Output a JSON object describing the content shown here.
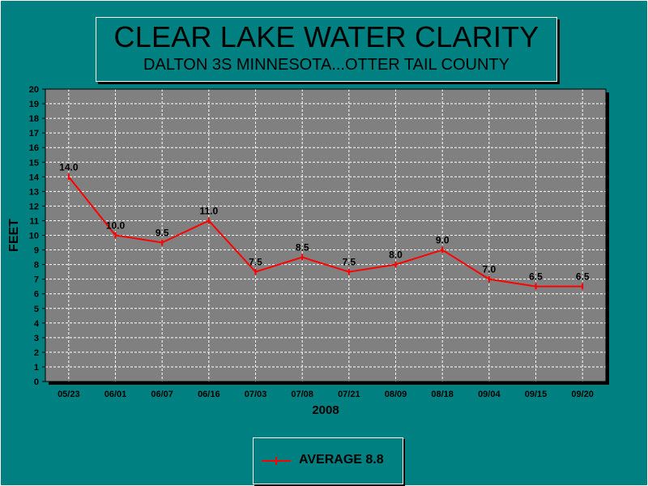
{
  "chart_data": {
    "type": "line",
    "title": "CLEAR LAKE WATER CLARITY",
    "subtitle": "DALTON 3S MINNESOTA...OTTER TAIL COUNTY",
    "xlabel": "2008",
    "ylabel": "FEET",
    "categories": [
      "05/23",
      "06/01",
      "06/07",
      "06/16",
      "07/03",
      "07/08",
      "07/21",
      "08/09",
      "08/18",
      "09/04",
      "09/15",
      "09/20"
    ],
    "series": [
      {
        "name": "AVERAGE 8.8",
        "values": [
          14.0,
          10.0,
          9.5,
          11.0,
          7.5,
          8.5,
          7.5,
          8.0,
          9.0,
          7.0,
          6.5,
          6.5
        ],
        "data_labels": [
          "14.0",
          "10.0",
          "9.5",
          "11.0",
          "7.5",
          "8.5",
          "7.5",
          "8.0",
          "9.0",
          "7.0",
          "6.5",
          "6.5"
        ],
        "color": "#ff0000"
      }
    ],
    "ylim": [
      0,
      20
    ],
    "yticks": [
      "0",
      "1",
      "2",
      "3",
      "4",
      "5",
      "6",
      "7",
      "8",
      "9",
      "10",
      "11",
      "12",
      "13",
      "14",
      "15",
      "16",
      "17",
      "18",
      "19",
      "20"
    ],
    "grid": true,
    "legend": "bottom-center"
  },
  "colors": {
    "background": "#008080",
    "plot_area": "#808080",
    "grid": "#ffffff",
    "series": "#ff0000",
    "text": "#000000"
  }
}
